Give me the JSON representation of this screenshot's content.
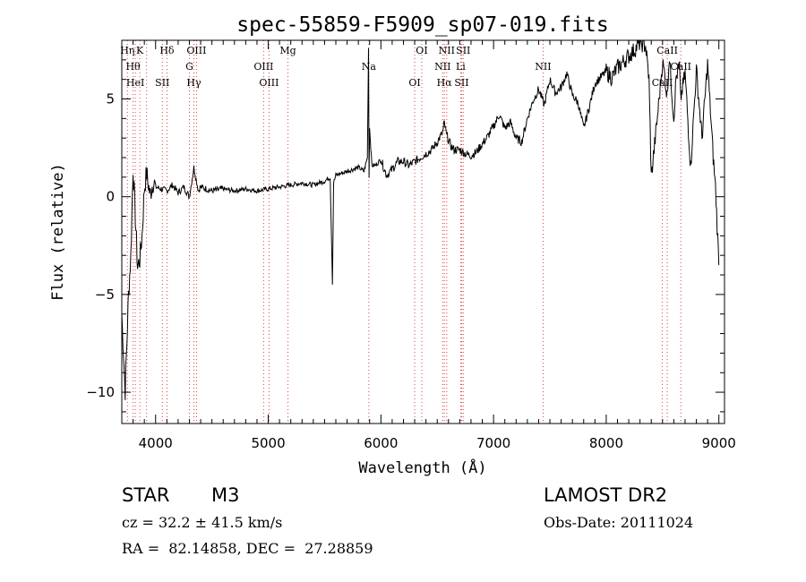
{
  "chart_data": {
    "type": "line",
    "title": "spec-55859-F5909_sp07-019.fits",
    "xlabel": "Wavelength (Å)",
    "ylabel": "Flux (relative)",
    "xlim": [
      3700,
      9050
    ],
    "ylim": [
      -11.6,
      8.0
    ],
    "xticks": [
      4000,
      5000,
      6000,
      7000,
      8000,
      9000
    ],
    "yticks": [
      -10,
      -5,
      0,
      5
    ],
    "ytick_labels": [
      "−10",
      "−5",
      "0",
      "5"
    ],
    "grid": false,
    "series": [
      {
        "x": [
          3700,
          3730,
          3760,
          3780,
          3800,
          3820,
          3840,
          3860,
          3880,
          3900,
          3920,
          3950,
          3980,
          4000,
          4050,
          4100,
          4150,
          4200,
          4250,
          4300,
          4340,
          4380,
          4400,
          4450,
          4500,
          4600,
          4700,
          4800,
          4900,
          5000,
          5100,
          5200,
          5300,
          5400,
          5500,
          5550,
          5570,
          5580,
          5600,
          5700,
          5800,
          5850,
          5880,
          5890,
          5895,
          5900,
          5920,
          5950,
          6000,
          6050,
          6100,
          6150,
          6200,
          6250,
          6300,
          6350,
          6400,
          6450,
          6500,
          6550,
          6563,
          6580,
          6620,
          6650,
          6700,
          6750,
          6800,
          6850,
          6900,
          6950,
          7000,
          7050,
          7100,
          7150,
          7200,
          7250,
          7300,
          7350,
          7400,
          7450,
          7500,
          7550,
          7600,
          7650,
          7700,
          7750,
          7800,
          7850,
          7900,
          7950,
          8000,
          8050,
          8100,
          8150,
          8200,
          8250,
          8300,
          8350,
          8380,
          8400,
          8450,
          8500,
          8520,
          8540,
          8560,
          8600,
          8620,
          8650,
          8660,
          8700,
          8750,
          8800,
          8850,
          8900,
          8950,
          8970,
          9000
        ],
        "y": [
          -6.0,
          -9.9,
          -5.0,
          -3.0,
          1.5,
          -1.0,
          -3.6,
          -3.2,
          -2.0,
          0.4,
          1.2,
          0.1,
          0.8,
          0.5,
          0.4,
          0.3,
          0.6,
          0.2,
          0.5,
          0.0,
          1.5,
          0.3,
          0.5,
          0.4,
          0.3,
          0.4,
          0.3,
          0.4,
          0.3,
          0.4,
          0.5,
          0.6,
          0.7,
          0.6,
          0.8,
          1.0,
          -4.4,
          0.7,
          1.1,
          1.3,
          1.5,
          1.3,
          2.0,
          7.7,
          1.0,
          3.5,
          1.6,
          1.6,
          1.9,
          1.1,
          1.4,
          1.8,
          1.8,
          1.6,
          1.8,
          2.0,
          2.2,
          2.4,
          2.8,
          3.3,
          3.8,
          3.2,
          2.6,
          2.4,
          2.4,
          2.2,
          2.1,
          2.3,
          2.7,
          3.1,
          3.6,
          4.2,
          3.5,
          3.8,
          3.0,
          2.8,
          4.0,
          4.9,
          5.5,
          4.7,
          6.0,
          5.3,
          5.6,
          6.3,
          5.2,
          4.8,
          3.5,
          4.6,
          5.8,
          6.1,
          6.4,
          6.1,
          6.6,
          6.9,
          7.2,
          7.5,
          7.9,
          7.7,
          6.0,
          1.0,
          3.8,
          6.9,
          6.2,
          5.1,
          7.2,
          4.0,
          6.1,
          6.7,
          5.0,
          6.3,
          1.5,
          6.5,
          3.0,
          6.8,
          2.0,
          0.5,
          -3.5
        ]
      }
    ],
    "line_markers": [
      {
        "x": 3750,
        "label": "Hη"
      },
      {
        "x": 3800,
        "label": "Hθ"
      },
      {
        "x": 3820,
        "label": "HeI"
      },
      {
        "x": 3860,
        "label": "K"
      },
      {
        "x": 3920,
        "label": ""
      },
      {
        "x": 4060,
        "label": "SII"
      },
      {
        "x": 4101,
        "label": "Hδ"
      },
      {
        "x": 4300,
        "label": "G"
      },
      {
        "x": 4340,
        "label": "Hγ"
      },
      {
        "x": 4363,
        "label": "OIII"
      },
      {
        "x": 4959,
        "label": "OIII"
      },
      {
        "x": 5007,
        "label": "OIII"
      },
      {
        "x": 5175,
        "label": "Mg"
      },
      {
        "x": 5893,
        "label": "Na"
      },
      {
        "x": 6300,
        "label": "OI"
      },
      {
        "x": 6363,
        "label": "OI"
      },
      {
        "x": 6548,
        "label": "NII"
      },
      {
        "x": 6563,
        "label": "Hα"
      },
      {
        "x": 6584,
        "label": "NII"
      },
      {
        "x": 6708,
        "label": "Li"
      },
      {
        "x": 6717,
        "label": "SII"
      },
      {
        "x": 6731,
        "label": "SII"
      },
      {
        "x": 7440,
        "label": "NII"
      },
      {
        "x": 8498,
        "label": "CaII"
      },
      {
        "x": 8542,
        "label": "CaII"
      },
      {
        "x": 8662,
        "label": "CaII"
      }
    ]
  },
  "info": {
    "object_class": "STAR",
    "subclass": "M3",
    "survey": "LAMOST DR2",
    "redshift": "cz = 32.2 ± 41.5 km/s",
    "obs_date": "Obs-Date: 20111024",
    "coords": "RA =  82.14858, DEC =  27.28859"
  }
}
